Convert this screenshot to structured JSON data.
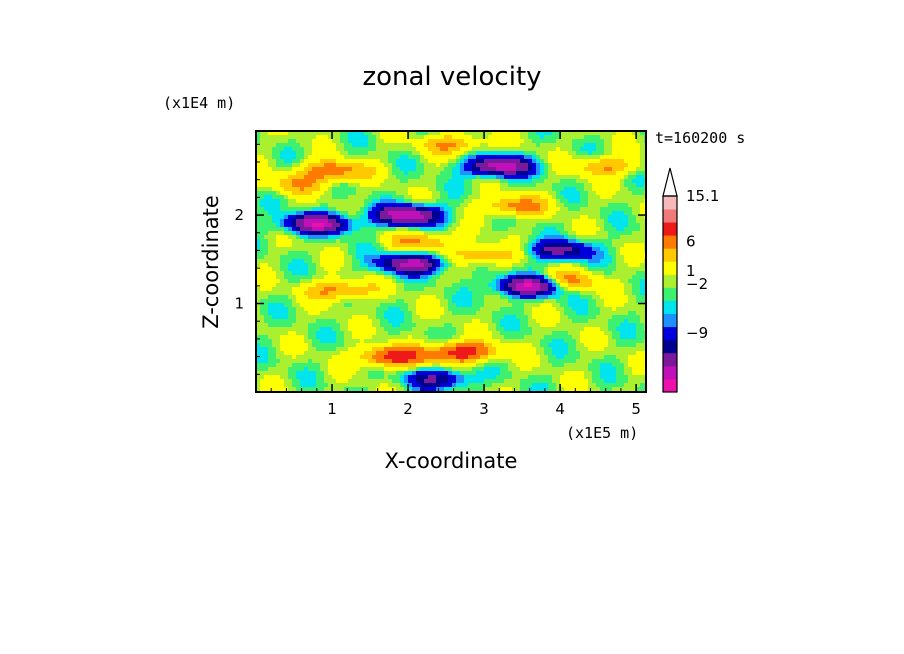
{
  "chart_data": {
    "type": "heatmap",
    "title": "zonal velocity",
    "xlabel": "X-coordinate",
    "ylabel": "Z-coordinate",
    "x_multiplier": "(x1E5 m)",
    "y_multiplier": "(x1E4 m)",
    "time_label": "t=160200 s",
    "x_ticks": [
      "1",
      "2",
      "3",
      "4",
      "5"
    ],
    "y_ticks": [
      "1",
      "2"
    ],
    "xlim": [
      0,
      5.13
    ],
    "ylim": [
      0,
      2.95
    ],
    "colorbar": {
      "tick_labels": [
        "15.1",
        "6",
        "1",
        "-2",
        "-9"
      ],
      "levels": [
        -15,
        -12,
        -9,
        -6,
        -4,
        -2,
        -1,
        0,
        1,
        2,
        4,
        6,
        9,
        12,
        15.1
      ],
      "colors": [
        "#ee10aa",
        "#c010b8",
        "#7a1a9a",
        "#000090",
        "#0000dd",
        "#1e90ff",
        "#00e4ee",
        "#3ef070",
        "#aaf030",
        "#ffff00",
        "#ffc800",
        "#ff7a00",
        "#ee1a1a",
        "#f07a7a",
        "#f6b9b9"
      ],
      "extend": "max"
    },
    "features": [
      {
        "x": 1.0,
        "z": 2.5,
        "u": 7
      },
      {
        "x": 0.55,
        "z": 2.35,
        "u": 4
      },
      {
        "x": 2.6,
        "z": 2.8,
        "u": 5
      },
      {
        "x": 3.4,
        "z": 2.1,
        "u": 6
      },
      {
        "x": 2.2,
        "z": 1.7,
        "u": 5
      },
      {
        "x": 3.0,
        "z": 1.55,
        "u": 5
      },
      {
        "x": 4.1,
        "z": 1.25,
        "u": 6
      },
      {
        "x": 1.1,
        "z": 1.15,
        "u": 6
      },
      {
        "x": 4.6,
        "z": 2.55,
        "u": 5
      },
      {
        "x": 0.8,
        "z": 1.9,
        "u": -12
      },
      {
        "x": 2.0,
        "z": 2.0,
        "u": -13
      },
      {
        "x": 3.2,
        "z": 2.55,
        "u": -12
      },
      {
        "x": 2.05,
        "z": 1.45,
        "u": -11
      },
      {
        "x": 3.6,
        "z": 1.2,
        "u": -13
      },
      {
        "x": 4.0,
        "z": 1.6,
        "u": -8
      },
      {
        "x": 2.4,
        "z": 0.15,
        "u": -7
      },
      {
        "x": 1.8,
        "z": 0.4,
        "u": 10
      },
      {
        "x": 2.72,
        "z": 0.45,
        "u": 10
      }
    ]
  }
}
